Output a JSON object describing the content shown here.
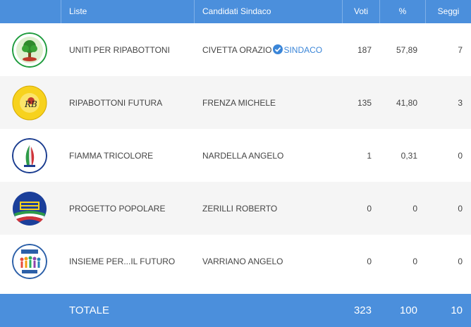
{
  "header": {
    "col_logo": "",
    "col_lista": "Liste",
    "col_candidato": "Candidati Sindaco",
    "col_voti": "Voti",
    "col_perc": "%",
    "col_seggi": "Seggi"
  },
  "rows": [
    {
      "lista": "UNITI PER RIPABOTTONI",
      "candidato": "CIVETTA ORAZIO",
      "badge": "SINDACO",
      "voti": "187",
      "perc": "57,89",
      "seggi": "7",
      "logo_text": "UNITI PER RIPABOTTONI"
    },
    {
      "lista": "RIPABOTTONI FUTURA",
      "candidato": "FRENZA MICHELE",
      "voti": "135",
      "perc": "41,80",
      "seggi": "3",
      "logo_text": "RIPABOTTONI FUTURA"
    },
    {
      "lista": "FIAMMA TRICOLORE",
      "candidato": "NARDELLA ANGELO",
      "voti": "1",
      "perc": "0,31",
      "seggi": "0",
      "logo_text": "FIAMMA TRICOLORE"
    },
    {
      "lista": "PROGETTO POPOLARE",
      "candidato": "ZERILLI ROBERTO",
      "voti": "0",
      "perc": "0",
      "seggi": "0",
      "logo_text": "PROGETTO POPOLARE"
    },
    {
      "lista": "INSIEME PER...IL FUTURO",
      "candidato": "VARRIANO ANGELO",
      "voti": "0",
      "perc": "0",
      "seggi": "0",
      "logo_text": "INSIEME PER... IL FUTURO"
    }
  ],
  "totale": {
    "label": "TOTALE",
    "voti": "323",
    "perc": "100",
    "seggi": "10"
  },
  "colors": {
    "header_bg": "#4b8fdc",
    "row_alt_bg": "#f5f5f5",
    "badge": "#3b86d8"
  },
  "icons": {
    "badge": "check-circle-icon"
  }
}
